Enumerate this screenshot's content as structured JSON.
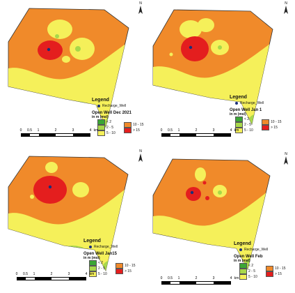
{
  "panels": [
    {
      "id": "dec",
      "map_title": "Open Well Dec 2021"
    },
    {
      "id": "jan1",
      "map_title": "Open Well Jan 1"
    },
    {
      "id": "jan15",
      "map_title": "Open Well Jan15"
    },
    {
      "id": "feb",
      "map_title": "Open Well Feb"
    }
  ],
  "legend": {
    "title": "Legend",
    "well_label": "Recharge_Well",
    "unit_label": "in m (msl)",
    "classes": [
      "< 2",
      "2 - 5",
      "5 - 10",
      "10 - 15",
      "> 15"
    ],
    "colors": {
      "lt2": "#3aa635",
      "2to5": "#a8d84a",
      "5to10": "#f5f05a",
      "10to15": "#f08a2a",
      "gt15": "#e41e1e"
    }
  },
  "scale_bar": {
    "ticks": [
      "0",
      "0.5",
      "1",
      "2",
      "3",
      "4"
    ],
    "unit": "km"
  },
  "north_label": "N",
  "icons": {
    "north": "north-arrow-icon",
    "well": "recharge-well-point-icon"
  }
}
